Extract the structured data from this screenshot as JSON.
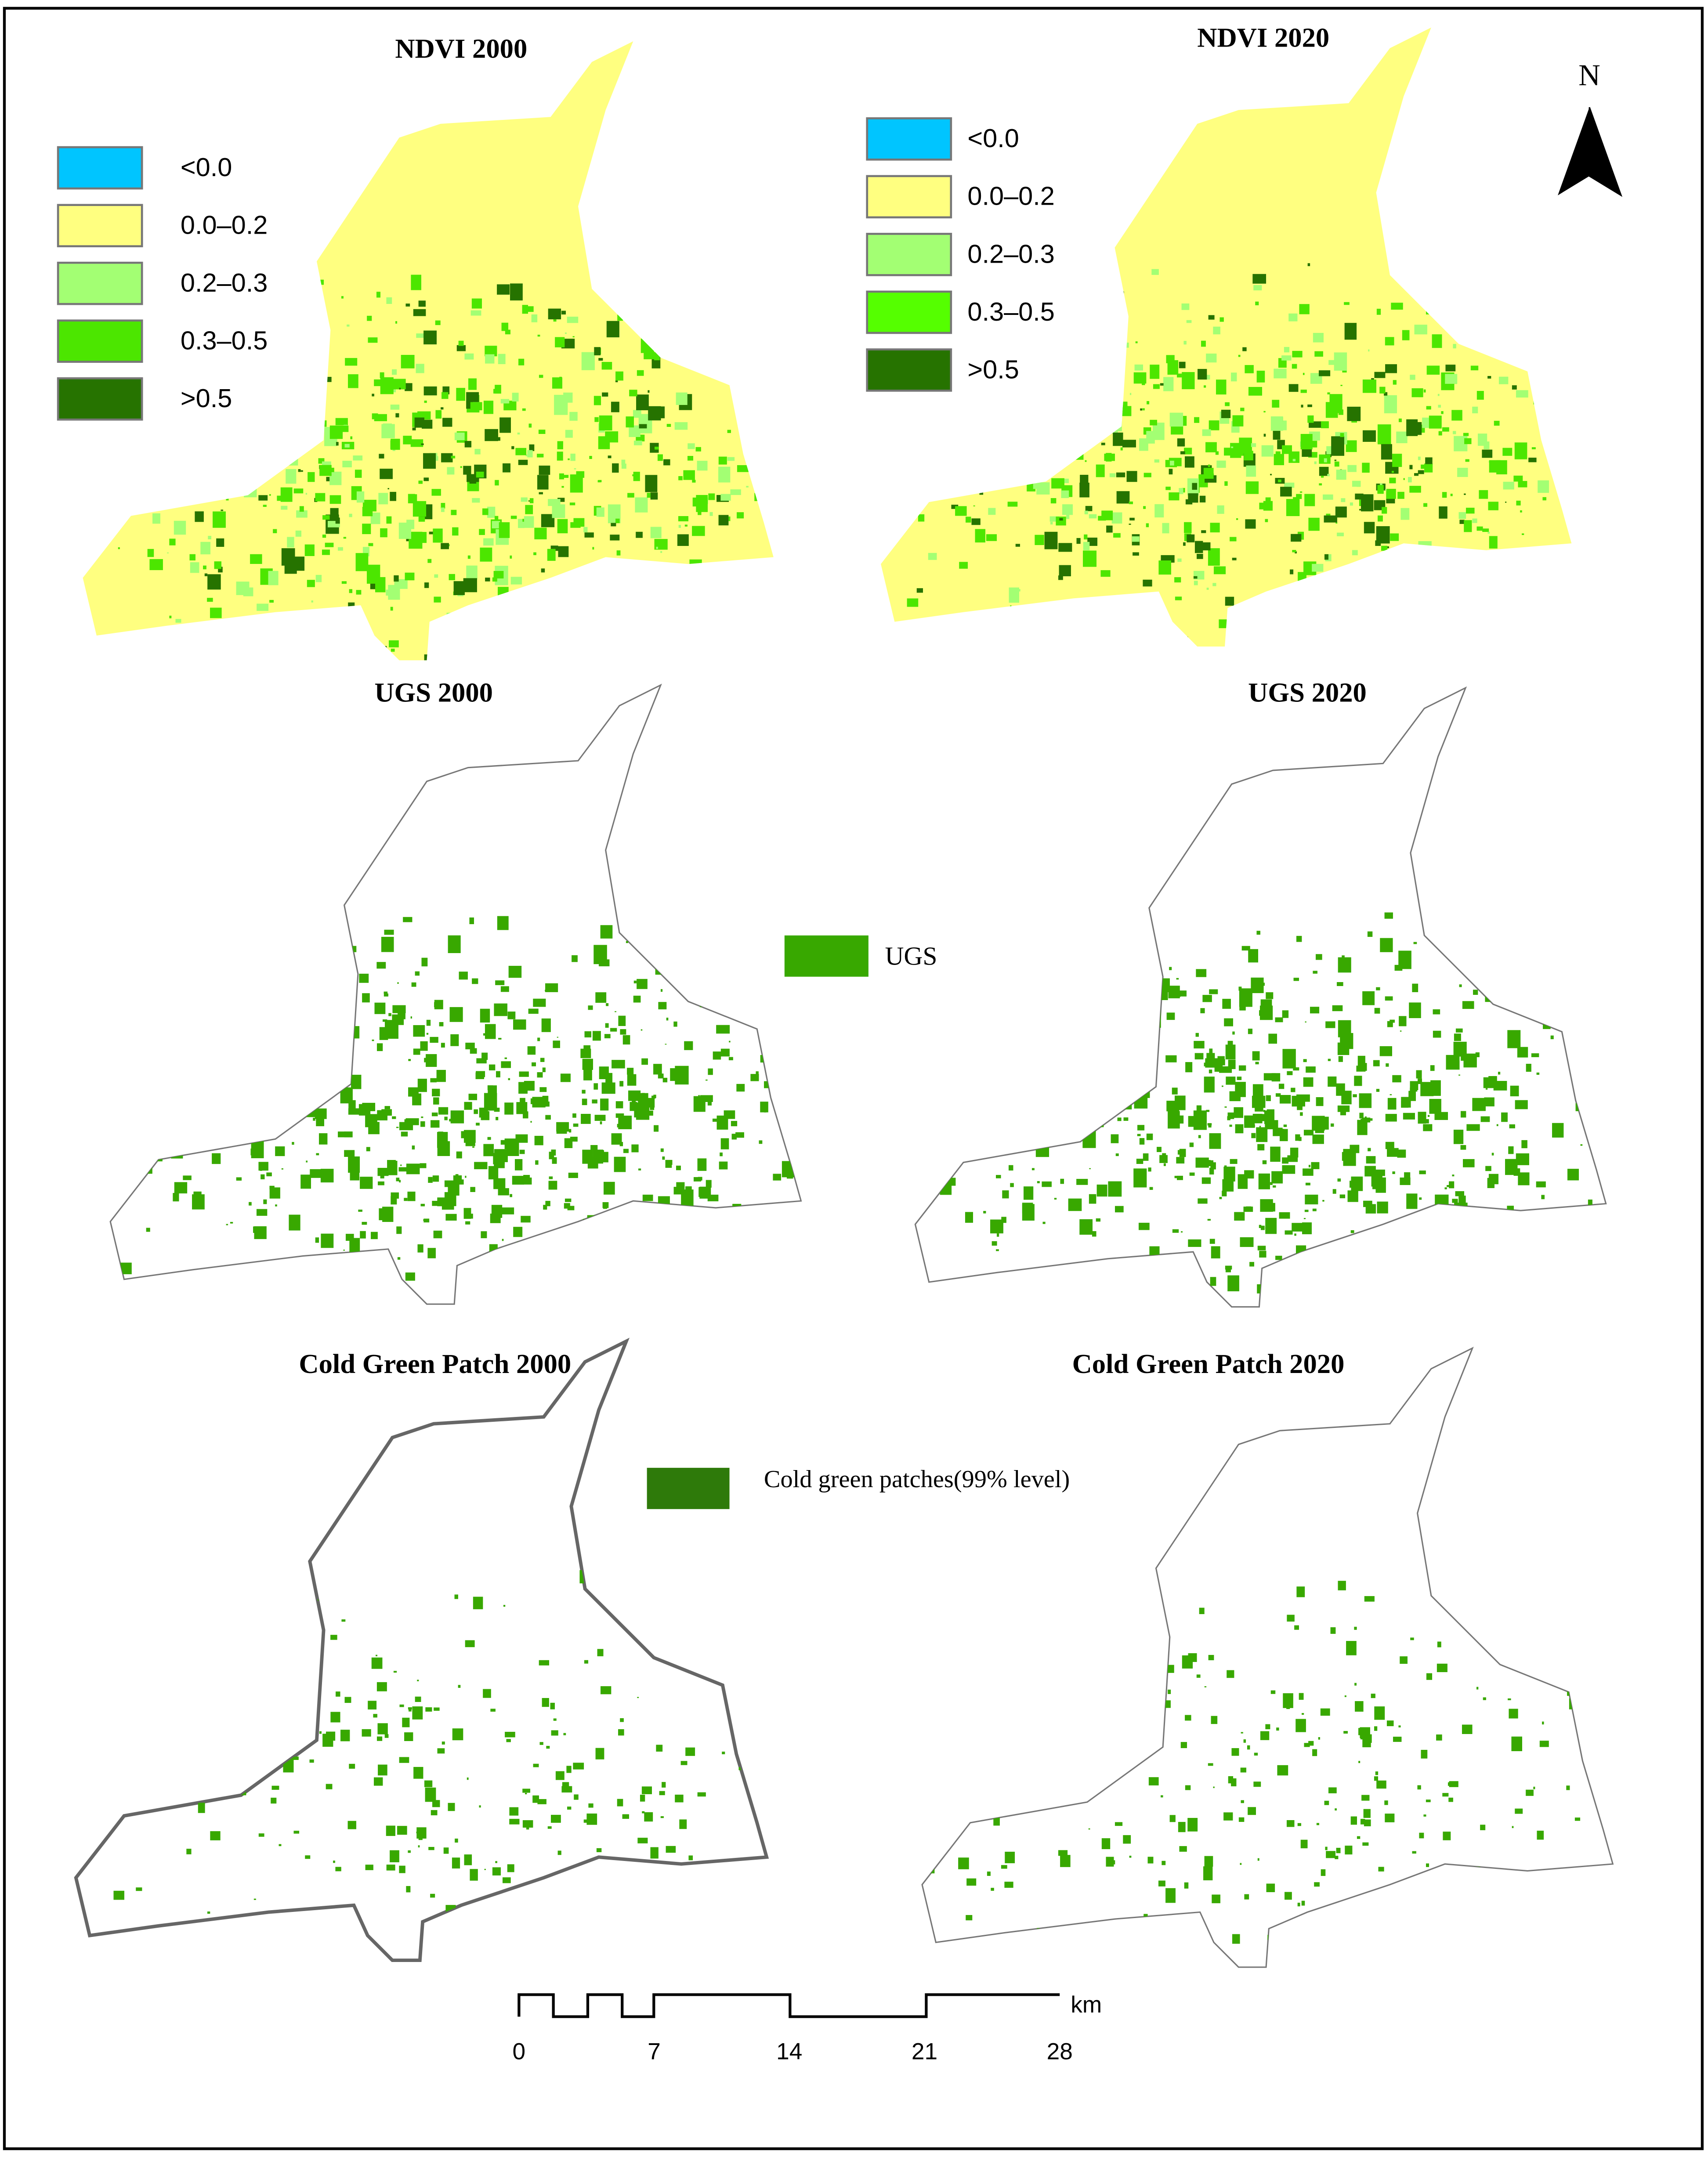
{
  "panels": [
    {
      "title": "NDVI 2000",
      "legend": [
        "<0.0",
        "0.0–0.2",
        "0.2–0.3",
        "0.3–0.5",
        ">0.5"
      ]
    },
    {
      "title": "NDVI 2020",
      "legend": [
        "<0.0",
        "0.0–0.2",
        "0.2–0.3",
        "0.3–0.5",
        ">0.5"
      ]
    },
    {
      "title": "UGS 2000",
      "legend": [
        "UGS"
      ]
    },
    {
      "title": "UGS 2020"
    },
    {
      "title": "Cold Green Patch 2000",
      "legend": [
        "Cold green patches(99% level)"
      ]
    },
    {
      "title": "Cold Green Patch 2020"
    }
  ],
  "north_arrow": "N",
  "scale_bar": {
    "ticks": [
      0,
      7,
      14,
      21,
      28
    ],
    "unit": "km"
  }
}
